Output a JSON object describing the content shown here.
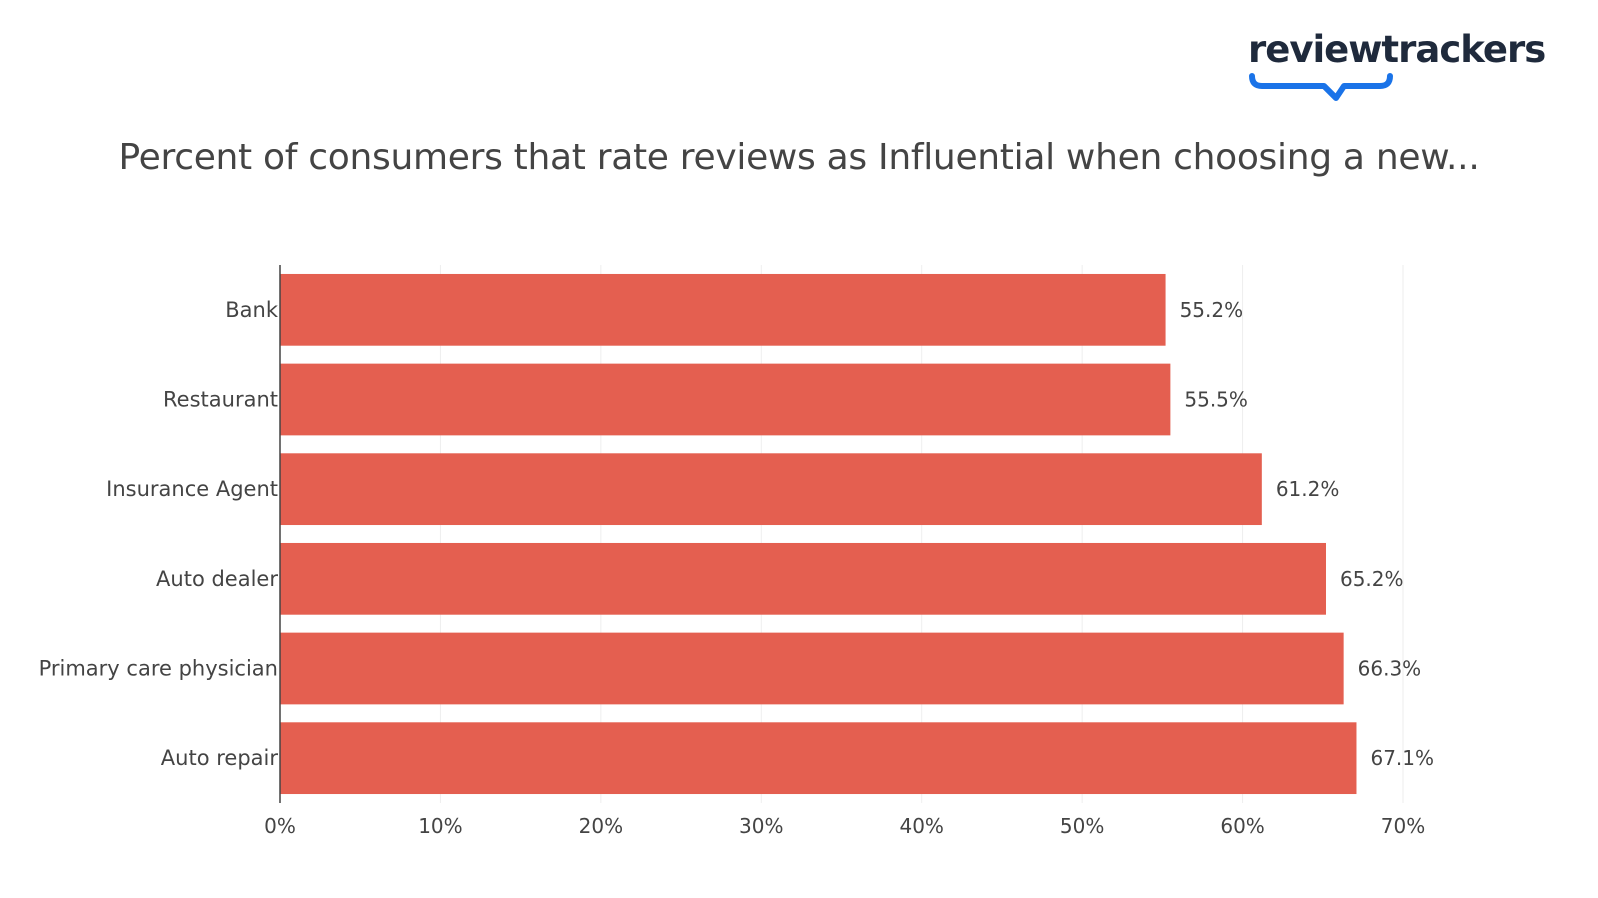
{
  "brand": {
    "name": "reviewtrackers",
    "text_color": "#1f2a3c",
    "accent_color": "#1a73e8"
  },
  "chart_data": {
    "type": "bar",
    "orientation": "horizontal",
    "title": "Percent of consumers that rate reviews as Influential when choosing a new...",
    "categories": [
      "Bank",
      "Restaurant",
      "Insurance Agent",
      "Auto dealer",
      "Primary care physician",
      "Auto repair"
    ],
    "values": [
      55.2,
      55.5,
      61.2,
      65.2,
      66.3,
      67.1
    ],
    "data_labels": [
      "55.2%",
      "55.5%",
      "61.2%",
      "65.2%",
      "66.3%",
      "67.1%"
    ],
    "xlim": [
      0,
      70
    ],
    "xticks": [
      0,
      10,
      20,
      30,
      40,
      50,
      60,
      70
    ],
    "xtick_labels": [
      "0%",
      "10%",
      "20%",
      "30%",
      "40%",
      "50%",
      "60%",
      "70%"
    ],
    "xlabel": "",
    "ylabel": "",
    "grid": true,
    "bar_color": "#e45f50",
    "grid_color": "#eeeeee"
  }
}
